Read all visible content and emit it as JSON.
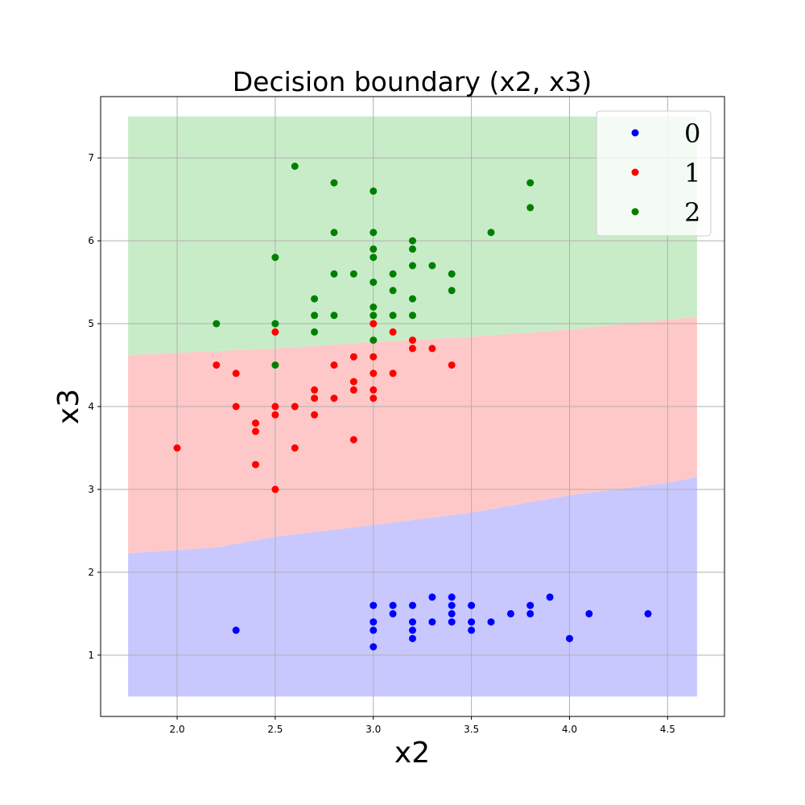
{
  "chart_data": {
    "type": "scatter",
    "title": "Decision boundary (x2, x3)",
    "xlabel": "x2",
    "ylabel": "x3",
    "xlim": [
      1.61,
      4.79
    ],
    "ylim": [
      0.26,
      7.74
    ],
    "grid": true,
    "legend_position": "top-right",
    "x_ticks": [
      "2.0",
      "2.5",
      "3.0",
      "3.5",
      "4.0",
      "4.5"
    ],
    "y_ticks": [
      "1",
      "2",
      "3",
      "4",
      "5",
      "6",
      "7"
    ],
    "x_tick_values": [
      2.0,
      2.5,
      3.0,
      3.5,
      4.0,
      4.5
    ],
    "y_tick_values": [
      1,
      2,
      3,
      4,
      5,
      6,
      7
    ],
    "decision_regions": {
      "x_range": [
        1.75,
        4.65
      ],
      "y_range": [
        0.5,
        7.5
      ],
      "colors": {
        "0": "#c8c8ff",
        "1": "#ffc8c8",
        "2": "#c8ecc8"
      },
      "boundary_0_1": [
        [
          1.75,
          2.23
        ],
        [
          2.2,
          2.3
        ],
        [
          2.5,
          2.43
        ],
        [
          3.0,
          2.57
        ],
        [
          3.5,
          2.72
        ],
        [
          4.0,
          2.93
        ],
        [
          4.5,
          3.08
        ],
        [
          4.65,
          3.15
        ]
      ],
      "boundary_1_2": [
        [
          1.75,
          4.62
        ],
        [
          2.2,
          4.67
        ],
        [
          2.5,
          4.7
        ],
        [
          3.0,
          4.78
        ],
        [
          3.5,
          4.84
        ],
        [
          4.0,
          4.93
        ],
        [
          4.5,
          5.05
        ],
        [
          4.65,
          5.08
        ]
      ]
    },
    "series": [
      {
        "name": "0",
        "color": "#0000ff",
        "points": [
          [
            2.3,
            1.3
          ],
          [
            3.0,
            1.6
          ],
          [
            3.0,
            1.4
          ],
          [
            3.0,
            1.3
          ],
          [
            3.0,
            1.1
          ],
          [
            3.1,
            1.6
          ],
          [
            3.1,
            1.5
          ],
          [
            3.2,
            1.6
          ],
          [
            3.2,
            1.4
          ],
          [
            3.2,
            1.3
          ],
          [
            3.2,
            1.2
          ],
          [
            3.3,
            1.7
          ],
          [
            3.3,
            1.4
          ],
          [
            3.4,
            1.7
          ],
          [
            3.4,
            1.6
          ],
          [
            3.4,
            1.5
          ],
          [
            3.4,
            1.4
          ],
          [
            3.5,
            1.6
          ],
          [
            3.5,
            1.4
          ],
          [
            3.5,
            1.3
          ],
          [
            3.6,
            1.4
          ],
          [
            3.7,
            1.5
          ],
          [
            3.8,
            1.6
          ],
          [
            3.8,
            1.5
          ],
          [
            3.9,
            1.7
          ],
          [
            4.0,
            1.2
          ],
          [
            4.1,
            1.5
          ],
          [
            4.4,
            1.5
          ]
        ]
      },
      {
        "name": "1",
        "color": "#ff0000",
        "points": [
          [
            2.0,
            3.5
          ],
          [
            2.2,
            4.5
          ],
          [
            2.3,
            4.4
          ],
          [
            2.3,
            4.0
          ],
          [
            2.4,
            3.8
          ],
          [
            2.4,
            3.7
          ],
          [
            2.4,
            3.3
          ],
          [
            2.5,
            4.9
          ],
          [
            2.5,
            4.0
          ],
          [
            2.5,
            3.9
          ],
          [
            2.5,
            3.0
          ],
          [
            2.6,
            4.0
          ],
          [
            2.6,
            3.5
          ],
          [
            2.7,
            4.2
          ],
          [
            2.7,
            4.1
          ],
          [
            2.7,
            3.9
          ],
          [
            2.8,
            4.5
          ],
          [
            2.8,
            4.1
          ],
          [
            2.9,
            4.6
          ],
          [
            2.9,
            4.3
          ],
          [
            2.9,
            4.2
          ],
          [
            2.9,
            3.6
          ],
          [
            3.0,
            5.0
          ],
          [
            3.0,
            4.6
          ],
          [
            3.0,
            4.4
          ],
          [
            3.0,
            4.2
          ],
          [
            3.0,
            4.1
          ],
          [
            3.1,
            4.9
          ],
          [
            3.1,
            4.4
          ],
          [
            3.2,
            4.8
          ],
          [
            3.2,
            4.7
          ],
          [
            3.3,
            4.7
          ],
          [
            3.4,
            4.5
          ]
        ]
      },
      {
        "name": "2",
        "color": "#008000",
        "points": [
          [
            2.2,
            5.0
          ],
          [
            2.5,
            5.8
          ],
          [
            2.5,
            5.0
          ],
          [
            2.5,
            4.5
          ],
          [
            2.6,
            6.9
          ],
          [
            2.7,
            5.3
          ],
          [
            2.7,
            5.1
          ],
          [
            2.7,
            4.9
          ],
          [
            2.8,
            6.7
          ],
          [
            2.8,
            6.1
          ],
          [
            2.8,
            5.6
          ],
          [
            2.8,
            5.1
          ],
          [
            2.9,
            5.6
          ],
          [
            3.0,
            6.6
          ],
          [
            3.0,
            6.1
          ],
          [
            3.0,
            5.9
          ],
          [
            3.0,
            5.8
          ],
          [
            3.0,
            5.5
          ],
          [
            3.0,
            5.2
          ],
          [
            3.0,
            5.1
          ],
          [
            3.0,
            4.8
          ],
          [
            3.1,
            5.6
          ],
          [
            3.1,
            5.4
          ],
          [
            3.1,
            5.1
          ],
          [
            3.2,
            6.0
          ],
          [
            3.2,
            5.9
          ],
          [
            3.2,
            5.7
          ],
          [
            3.2,
            5.3
          ],
          [
            3.2,
            5.1
          ],
          [
            3.3,
            5.7
          ],
          [
            3.4,
            5.6
          ],
          [
            3.4,
            5.4
          ],
          [
            3.6,
            6.1
          ],
          [
            3.8,
            6.7
          ],
          [
            3.8,
            6.4
          ]
        ]
      }
    ]
  }
}
